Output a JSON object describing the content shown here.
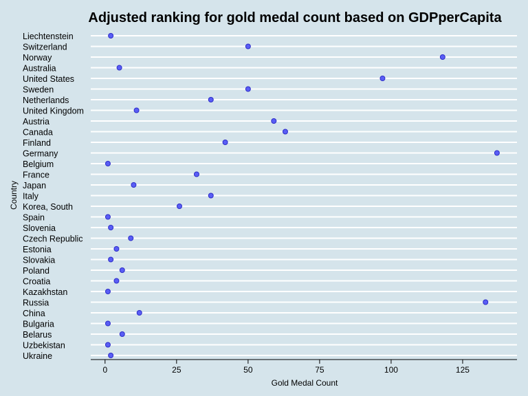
{
  "chart_data": {
    "type": "scatter",
    "title": "Adjusted ranking for gold medal count based on GDPperCapita",
    "xlabel": "Gold Medal Count",
    "ylabel": "Country",
    "xlim": [
      -5,
      144
    ],
    "xticks": [
      0,
      25,
      50,
      75,
      100,
      125
    ],
    "grid": "horizontal",
    "colors": {
      "background": "#d5e4eb",
      "point_fill": "#5a5ef5",
      "point_stroke": "#2d2dc8",
      "grid": "#ffffff"
    },
    "categories": [
      "Liechtenstein",
      "Switzerland",
      "Norway",
      "Australia",
      "United States",
      "Sweden",
      "Netherlands",
      "United Kingdom",
      "Austria",
      "Canada",
      "Finland",
      "Germany",
      "Belgium",
      "France",
      "Japan",
      "Italy",
      "Korea, South",
      "Spain",
      "Slovenia",
      "Czech Republic",
      "Estonia",
      "Slovakia",
      "Poland",
      "Croatia",
      "Kazakhstan",
      "Russia",
      "China",
      "Bulgaria",
      "Belarus",
      "Uzbekistan",
      "Ukraine"
    ],
    "values": [
      2,
      50,
      118,
      5,
      97,
      50,
      37,
      11,
      59,
      63,
      42,
      137,
      1,
      32,
      10,
      37,
      26,
      1,
      2,
      9,
      4,
      2,
      6,
      4,
      1,
      133,
      12,
      1,
      6,
      1,
      2
    ]
  }
}
